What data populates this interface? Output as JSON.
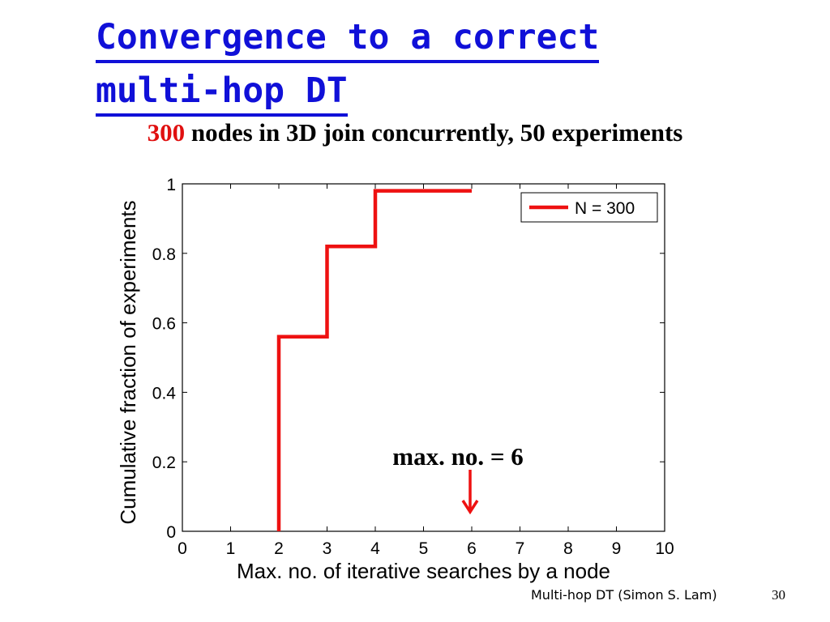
{
  "slide": {
    "title_line1": "Convergence to a correct",
    "title_line2": "multi-hop DT",
    "subtitle_count": "300",
    "subtitle_rest": " nodes in 3D join concurrently, 50 experiments",
    "footer": "Multi-hop DT (Simon S. Lam)",
    "page_number": "30"
  },
  "chart_data": {
    "type": "line",
    "step": true,
    "xlabel": "Max. no. of iterative searches by a node",
    "ylabel": "Cumulative fraction of experiments",
    "xlim": [
      0,
      10
    ],
    "ylim": [
      0,
      1
    ],
    "x_ticks": [
      0,
      1,
      2,
      3,
      4,
      5,
      6,
      7,
      8,
      9,
      10
    ],
    "y_ticks": [
      0,
      0.2,
      0.4,
      0.6,
      0.8,
      1
    ],
    "x_tick_labels": [
      "0",
      "1",
      "2",
      "3",
      "4",
      "5",
      "6",
      "7",
      "8",
      "9",
      "10"
    ],
    "y_tick_labels": [
      "0",
      "0.2",
      "0.4",
      "0.6",
      "0.8",
      "1"
    ],
    "grid": false,
    "legend_position": "top-right",
    "series": [
      {
        "name": "N = 300",
        "color": "#ee1111",
        "points": [
          [
            2,
            0
          ],
          [
            2,
            0.56
          ],
          [
            3,
            0.56
          ],
          [
            3,
            0.82
          ],
          [
            4,
            0.82
          ],
          [
            4,
            0.98
          ],
          [
            6,
            0.98
          ]
        ]
      }
    ],
    "annotation": {
      "text": "max. no. = 6",
      "x": 6,
      "arrow_color": "#ee1111"
    }
  }
}
